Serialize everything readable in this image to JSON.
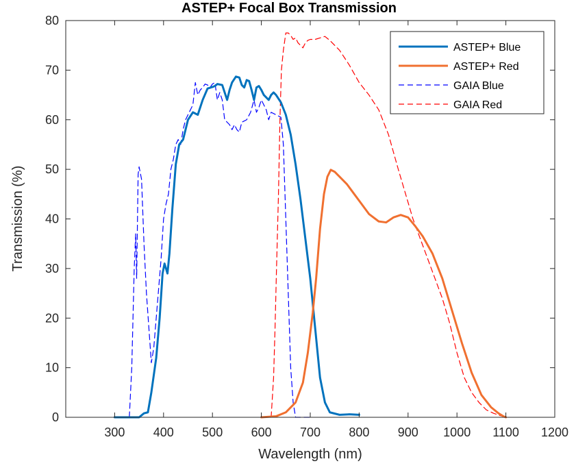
{
  "chart_data": {
    "type": "line",
    "title": "ASTEP+ Focal Box Transmission",
    "xlabel": "Wavelength (nm)",
    "ylabel": "Transmission (%)",
    "xlim": [
      200,
      1200
    ],
    "ylim": [
      0,
      80
    ],
    "xticks": [
      300,
      400,
      500,
      600,
      700,
      800,
      900,
      1000,
      1100,
      1200
    ],
    "yticks": [
      0,
      10,
      20,
      30,
      40,
      50,
      60,
      70,
      80
    ],
    "grid": false,
    "legend_position": "top-right",
    "series": [
      {
        "name": "ASTEP+ Blue",
        "color": "#0072BD",
        "style": "solid",
        "width": 3,
        "points": [
          [
            300,
            0
          ],
          [
            350,
            0
          ],
          [
            360,
            0.8
          ],
          [
            368,
            1
          ],
          [
            375,
            5
          ],
          [
            385,
            12
          ],
          [
            392,
            20
          ],
          [
            398,
            29
          ],
          [
            402,
            31
          ],
          [
            408,
            29
          ],
          [
            412,
            33
          ],
          [
            418,
            42
          ],
          [
            425,
            51
          ],
          [
            432,
            55
          ],
          [
            440,
            56
          ],
          [
            450,
            60
          ],
          [
            460,
            61.5
          ],
          [
            470,
            61
          ],
          [
            480,
            64
          ],
          [
            490,
            66.3
          ],
          [
            500,
            66.6
          ],
          [
            505,
            66.8
          ],
          [
            510,
            67.2
          ],
          [
            520,
            67
          ],
          [
            525,
            65.5
          ],
          [
            530,
            64
          ],
          [
            535,
            66
          ],
          [
            540,
            67.5
          ],
          [
            548,
            68.7
          ],
          [
            555,
            68.5
          ],
          [
            560,
            67
          ],
          [
            565,
            66.5
          ],
          [
            570,
            68
          ],
          [
            575,
            67.8
          ],
          [
            580,
            66
          ],
          [
            585,
            64
          ],
          [
            590,
            66.5
          ],
          [
            595,
            66.8
          ],
          [
            600,
            66
          ],
          [
            605,
            65
          ],
          [
            610,
            64.5
          ],
          [
            615,
            64
          ],
          [
            620,
            65
          ],
          [
            625,
            65.5
          ],
          [
            630,
            65
          ],
          [
            640,
            63.5
          ],
          [
            650,
            61
          ],
          [
            660,
            57
          ],
          [
            670,
            51
          ],
          [
            680,
            44
          ],
          [
            690,
            36
          ],
          [
            700,
            28
          ],
          [
            710,
            18
          ],
          [
            720,
            8
          ],
          [
            730,
            3
          ],
          [
            740,
            1
          ],
          [
            760,
            0.5
          ],
          [
            780,
            0.6
          ],
          [
            800,
            0.5
          ]
        ]
      },
      {
        "name": "ASTEP+ Red",
        "color": "#F07030",
        "style": "solid",
        "width": 3,
        "points": [
          [
            600,
            0
          ],
          [
            630,
            0.2
          ],
          [
            650,
            1
          ],
          [
            670,
            3
          ],
          [
            685,
            7
          ],
          [
            695,
            13
          ],
          [
            705,
            21
          ],
          [
            712,
            28
          ],
          [
            720,
            38
          ],
          [
            728,
            45
          ],
          [
            735,
            48.5
          ],
          [
            742,
            49.9
          ],
          [
            750,
            49.5
          ],
          [
            760,
            48.5
          ],
          [
            775,
            47
          ],
          [
            790,
            45
          ],
          [
            805,
            43
          ],
          [
            820,
            41
          ],
          [
            840,
            39.5
          ],
          [
            855,
            39.3
          ],
          [
            870,
            40.3
          ],
          [
            885,
            40.8
          ],
          [
            900,
            40.3
          ],
          [
            915,
            38.5
          ],
          [
            930,
            36.5
          ],
          [
            950,
            33
          ],
          [
            970,
            28
          ],
          [
            990,
            21.5
          ],
          [
            1010,
            15
          ],
          [
            1030,
            9
          ],
          [
            1050,
            4.5
          ],
          [
            1070,
            2
          ],
          [
            1085,
            0.8
          ],
          [
            1095,
            0.2
          ],
          [
            1100,
            0
          ]
        ]
      },
      {
        "name": "GAIA Blue",
        "color": "#0000FF",
        "style": "dashed",
        "width": 1.2,
        "points": [
          [
            330,
            0
          ],
          [
            335,
            10
          ],
          [
            340,
            30
          ],
          [
            343,
            37
          ],
          [
            345,
            28
          ],
          [
            348,
            49
          ],
          [
            350,
            50.5
          ],
          [
            355,
            48
          ],
          [
            360,
            35
          ],
          [
            365,
            25
          ],
          [
            370,
            18
          ],
          [
            375,
            11
          ],
          [
            380,
            14
          ],
          [
            385,
            20
          ],
          [
            395,
            32
          ],
          [
            400,
            40
          ],
          [
            405,
            43
          ],
          [
            410,
            45
          ],
          [
            415,
            50
          ],
          [
            420,
            52
          ],
          [
            425,
            55
          ],
          [
            430,
            56
          ],
          [
            435,
            55
          ],
          [
            440,
            58
          ],
          [
            445,
            60
          ],
          [
            450,
            61
          ],
          [
            455,
            62
          ],
          [
            460,
            63
          ],
          [
            465,
            67.5
          ],
          [
            470,
            65
          ],
          [
            475,
            66
          ],
          [
            480,
            66.5
          ],
          [
            485,
            67.2
          ],
          [
            490,
            67
          ],
          [
            495,
            66.5
          ],
          [
            500,
            67.2
          ],
          [
            505,
            67.5
          ],
          [
            510,
            64
          ],
          [
            515,
            65.5
          ],
          [
            520,
            64
          ],
          [
            525,
            60
          ],
          [
            530,
            59.5
          ],
          [
            535,
            59
          ],
          [
            540,
            58
          ],
          [
            545,
            59
          ],
          [
            550,
            58
          ],
          [
            555,
            57.5
          ],
          [
            560,
            59.5
          ],
          [
            570,
            60
          ],
          [
            578,
            61.5
          ],
          [
            585,
            64
          ],
          [
            590,
            61.5
          ],
          [
            595,
            62.5
          ],
          [
            600,
            64
          ],
          [
            605,
            63
          ],
          [
            610,
            62
          ],
          [
            615,
            60
          ],
          [
            620,
            61.5
          ],
          [
            630,
            61
          ],
          [
            640,
            60.5
          ],
          [
            645,
            55
          ],
          [
            650,
            40
          ],
          [
            655,
            25
          ],
          [
            660,
            10
          ],
          [
            665,
            3
          ],
          [
            670,
            0
          ],
          [
            700,
            0
          ]
        ]
      },
      {
        "name": "GAIA Red",
        "color": "#FF0000",
        "style": "dashed",
        "width": 1.2,
        "points": [
          [
            620,
            0
          ],
          [
            625,
            8
          ],
          [
            628,
            18
          ],
          [
            631,
            30
          ],
          [
            635,
            45
          ],
          [
            638,
            60
          ],
          [
            641,
            70
          ],
          [
            645,
            74
          ],
          [
            650,
            77.5
          ],
          [
            655,
            77.5
          ],
          [
            660,
            77
          ],
          [
            665,
            76.2
          ],
          [
            670,
            76.5
          ],
          [
            675,
            75.5
          ],
          [
            680,
            75
          ],
          [
            685,
            74.5
          ],
          [
            690,
            75.5
          ],
          [
            695,
            76
          ],
          [
            700,
            76.2
          ],
          [
            710,
            76.2
          ],
          [
            720,
            76.5
          ],
          [
            730,
            76.8
          ],
          [
            740,
            76
          ],
          [
            760,
            74
          ],
          [
            780,
            71
          ],
          [
            800,
            67.5
          ],
          [
            820,
            65
          ],
          [
            840,
            62
          ],
          [
            860,
            57
          ],
          [
            880,
            50
          ],
          [
            895,
            45
          ],
          [
            910,
            40
          ],
          [
            925,
            36
          ],
          [
            940,
            32
          ],
          [
            955,
            28
          ],
          [
            970,
            24
          ],
          [
            985,
            19
          ],
          [
            1000,
            13
          ],
          [
            1015,
            8
          ],
          [
            1030,
            5
          ],
          [
            1045,
            3
          ],
          [
            1060,
            1.5
          ],
          [
            1075,
            0.8
          ],
          [
            1090,
            0.3
          ],
          [
            1100,
            0
          ]
        ]
      }
    ]
  }
}
